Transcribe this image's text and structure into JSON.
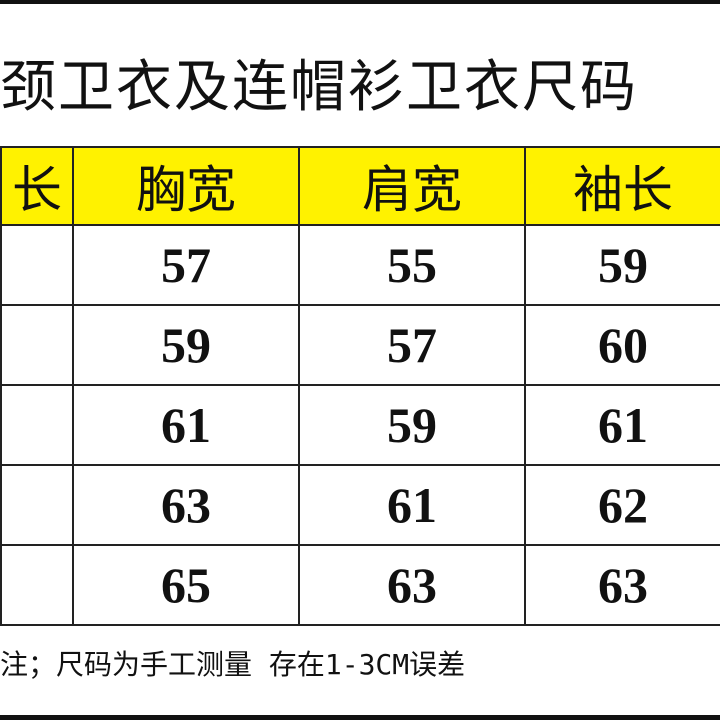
{
  "title": "颈卫衣及连帽衫卫衣尺码",
  "table": {
    "headers": [
      "长",
      "胸宽",
      "肩宽",
      "袖长"
    ],
    "rows": [
      [
        "",
        "57",
        "55",
        "59"
      ],
      [
        "",
        "59",
        "57",
        "60"
      ],
      [
        "",
        "61",
        "59",
        "61"
      ],
      [
        "",
        "63",
        "61",
        "62"
      ],
      [
        "",
        "65",
        "63",
        "63"
      ]
    ]
  },
  "note": "注；尺码为手工测量  存在1-3CM误差",
  "colors": {
    "header_bg": "#fff200",
    "border": "#222222"
  }
}
